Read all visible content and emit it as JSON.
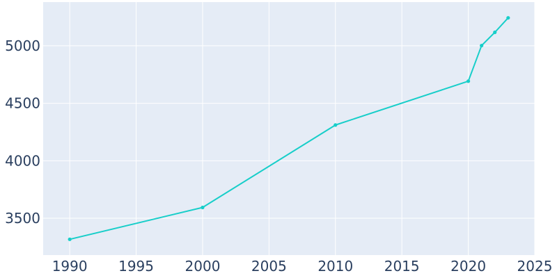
{
  "chart_data": {
    "type": "line",
    "title": "",
    "xlabel": "",
    "ylabel": "",
    "x": [
      1990,
      2000,
      2010,
      2020,
      2021,
      2022,
      2023
    ],
    "series": [
      {
        "values": [
          3317,
          3594,
          4311,
          4692,
          5002,
          5117,
          5243
        ]
      }
    ],
    "xlim": [
      1988,
      2025
    ],
    "ylim": [
      3180,
      5380
    ],
    "xticks": [
      1990,
      1995,
      2000,
      2005,
      2010,
      2015,
      2020,
      2025
    ],
    "yticks": [
      3500,
      4000,
      4500,
      5000
    ],
    "grid": true,
    "legend": "none",
    "colors": {
      "line": "#17cec9",
      "plot_background": "#e5ecf6",
      "grid": "#ffffff",
      "tick_text": "#2a3f5f",
      "page_background": "#ffffff"
    }
  }
}
